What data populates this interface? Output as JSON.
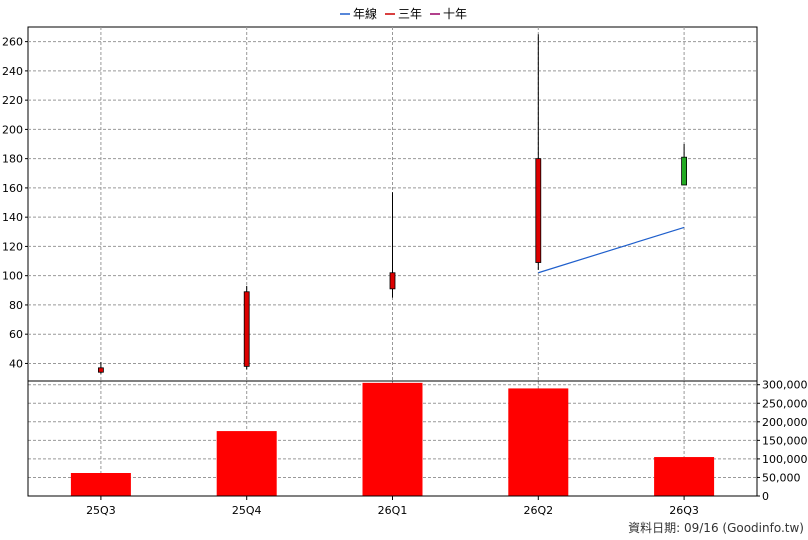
{
  "chart_data": [
    {
      "type": "candlestick",
      "legend": [
        {
          "name": "年線",
          "color": "#1f5fcc"
        },
        {
          "name": "三年",
          "color": "#cc0000"
        },
        {
          "name": "十年",
          "color": "#990066"
        }
      ],
      "legend_position": "top-center",
      "categories": [
        "25Q3",
        "25Q4",
        "26Q1",
        "26Q2",
        "26Q3"
      ],
      "candles": [
        {
          "open": 37,
          "close": 34,
          "high": 41,
          "low": 33,
          "color": "#dd0000"
        },
        {
          "open": 38,
          "close": 89,
          "high": 93,
          "low": 36,
          "color": "#dd0000"
        },
        {
          "open": 91,
          "close": 102,
          "high": 157,
          "low": 85,
          "color": "#dd0000"
        },
        {
          "open": 109,
          "close": 180,
          "high": 265,
          "low": 104,
          "color": "#dd0000"
        },
        {
          "open": 162,
          "close": 181,
          "high": 190,
          "low": 162,
          "color": "#22aa22"
        }
      ],
      "annual_line": [
        {
          "category": "26Q2",
          "value": 102
        },
        {
          "category": "26Q3",
          "value": 133
        }
      ],
      "y_ticks": [
        "40",
        "60",
        "80",
        "100",
        "120",
        "140",
        "160",
        "180",
        "200",
        "220",
        "240",
        "260"
      ],
      "ylim": [
        28,
        270
      ],
      "grid": true
    },
    {
      "type": "bar",
      "categories": [
        "25Q3",
        "25Q4",
        "26Q1",
        "26Q2",
        "26Q3"
      ],
      "values": [
        62000,
        175000,
        305000,
        290000,
        105000
      ],
      "bar_color": "#ff0000",
      "y_ticks": [
        "0",
        "50,000",
        "100,000",
        "150,000",
        "200,000",
        "250,000",
        "300,000"
      ],
      "ylim": [
        0,
        310000
      ],
      "grid": true
    }
  ],
  "footer": "資料日期: 09/16  (Goodinfo.tw)"
}
